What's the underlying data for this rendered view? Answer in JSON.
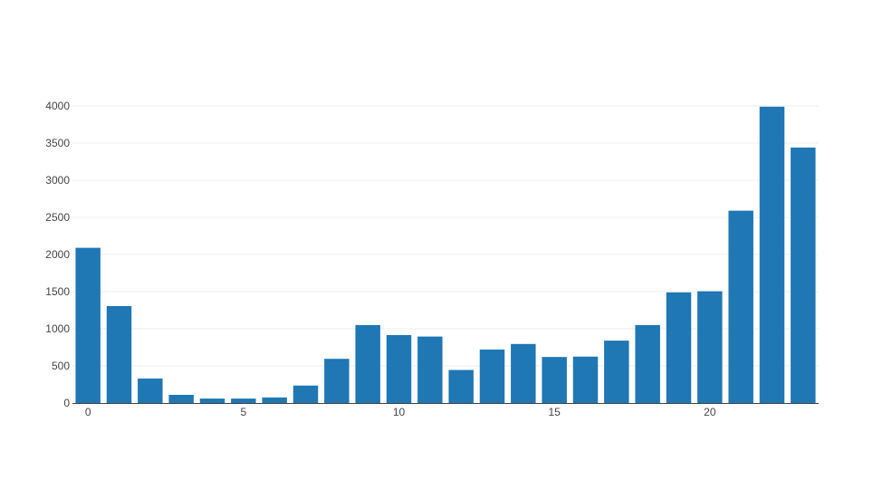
{
  "chart_data": {
    "type": "bar",
    "title": "",
    "xlabel": "",
    "ylabel": "",
    "categories": [
      0,
      1,
      2,
      3,
      4,
      5,
      6,
      7,
      8,
      9,
      10,
      11,
      12,
      13,
      14,
      15,
      16,
      17,
      18,
      19,
      20,
      21,
      22,
      23
    ],
    "values": [
      2090,
      1305,
      330,
      110,
      60,
      60,
      75,
      235,
      595,
      1050,
      915,
      895,
      445,
      720,
      795,
      620,
      625,
      840,
      1050,
      1490,
      1505,
      2590,
      3990,
      3440
    ],
    "xlim": [
      -0.5,
      23.5
    ],
    "ylim": [
      0,
      4000
    ],
    "x_ticks": [
      0,
      5,
      10,
      15,
      20
    ],
    "y_ticks": [
      0,
      500,
      1000,
      1500,
      2000,
      2500,
      3000,
      3500,
      4000
    ],
    "grid": "horizontal",
    "bar_color": "#1f77b4"
  }
}
